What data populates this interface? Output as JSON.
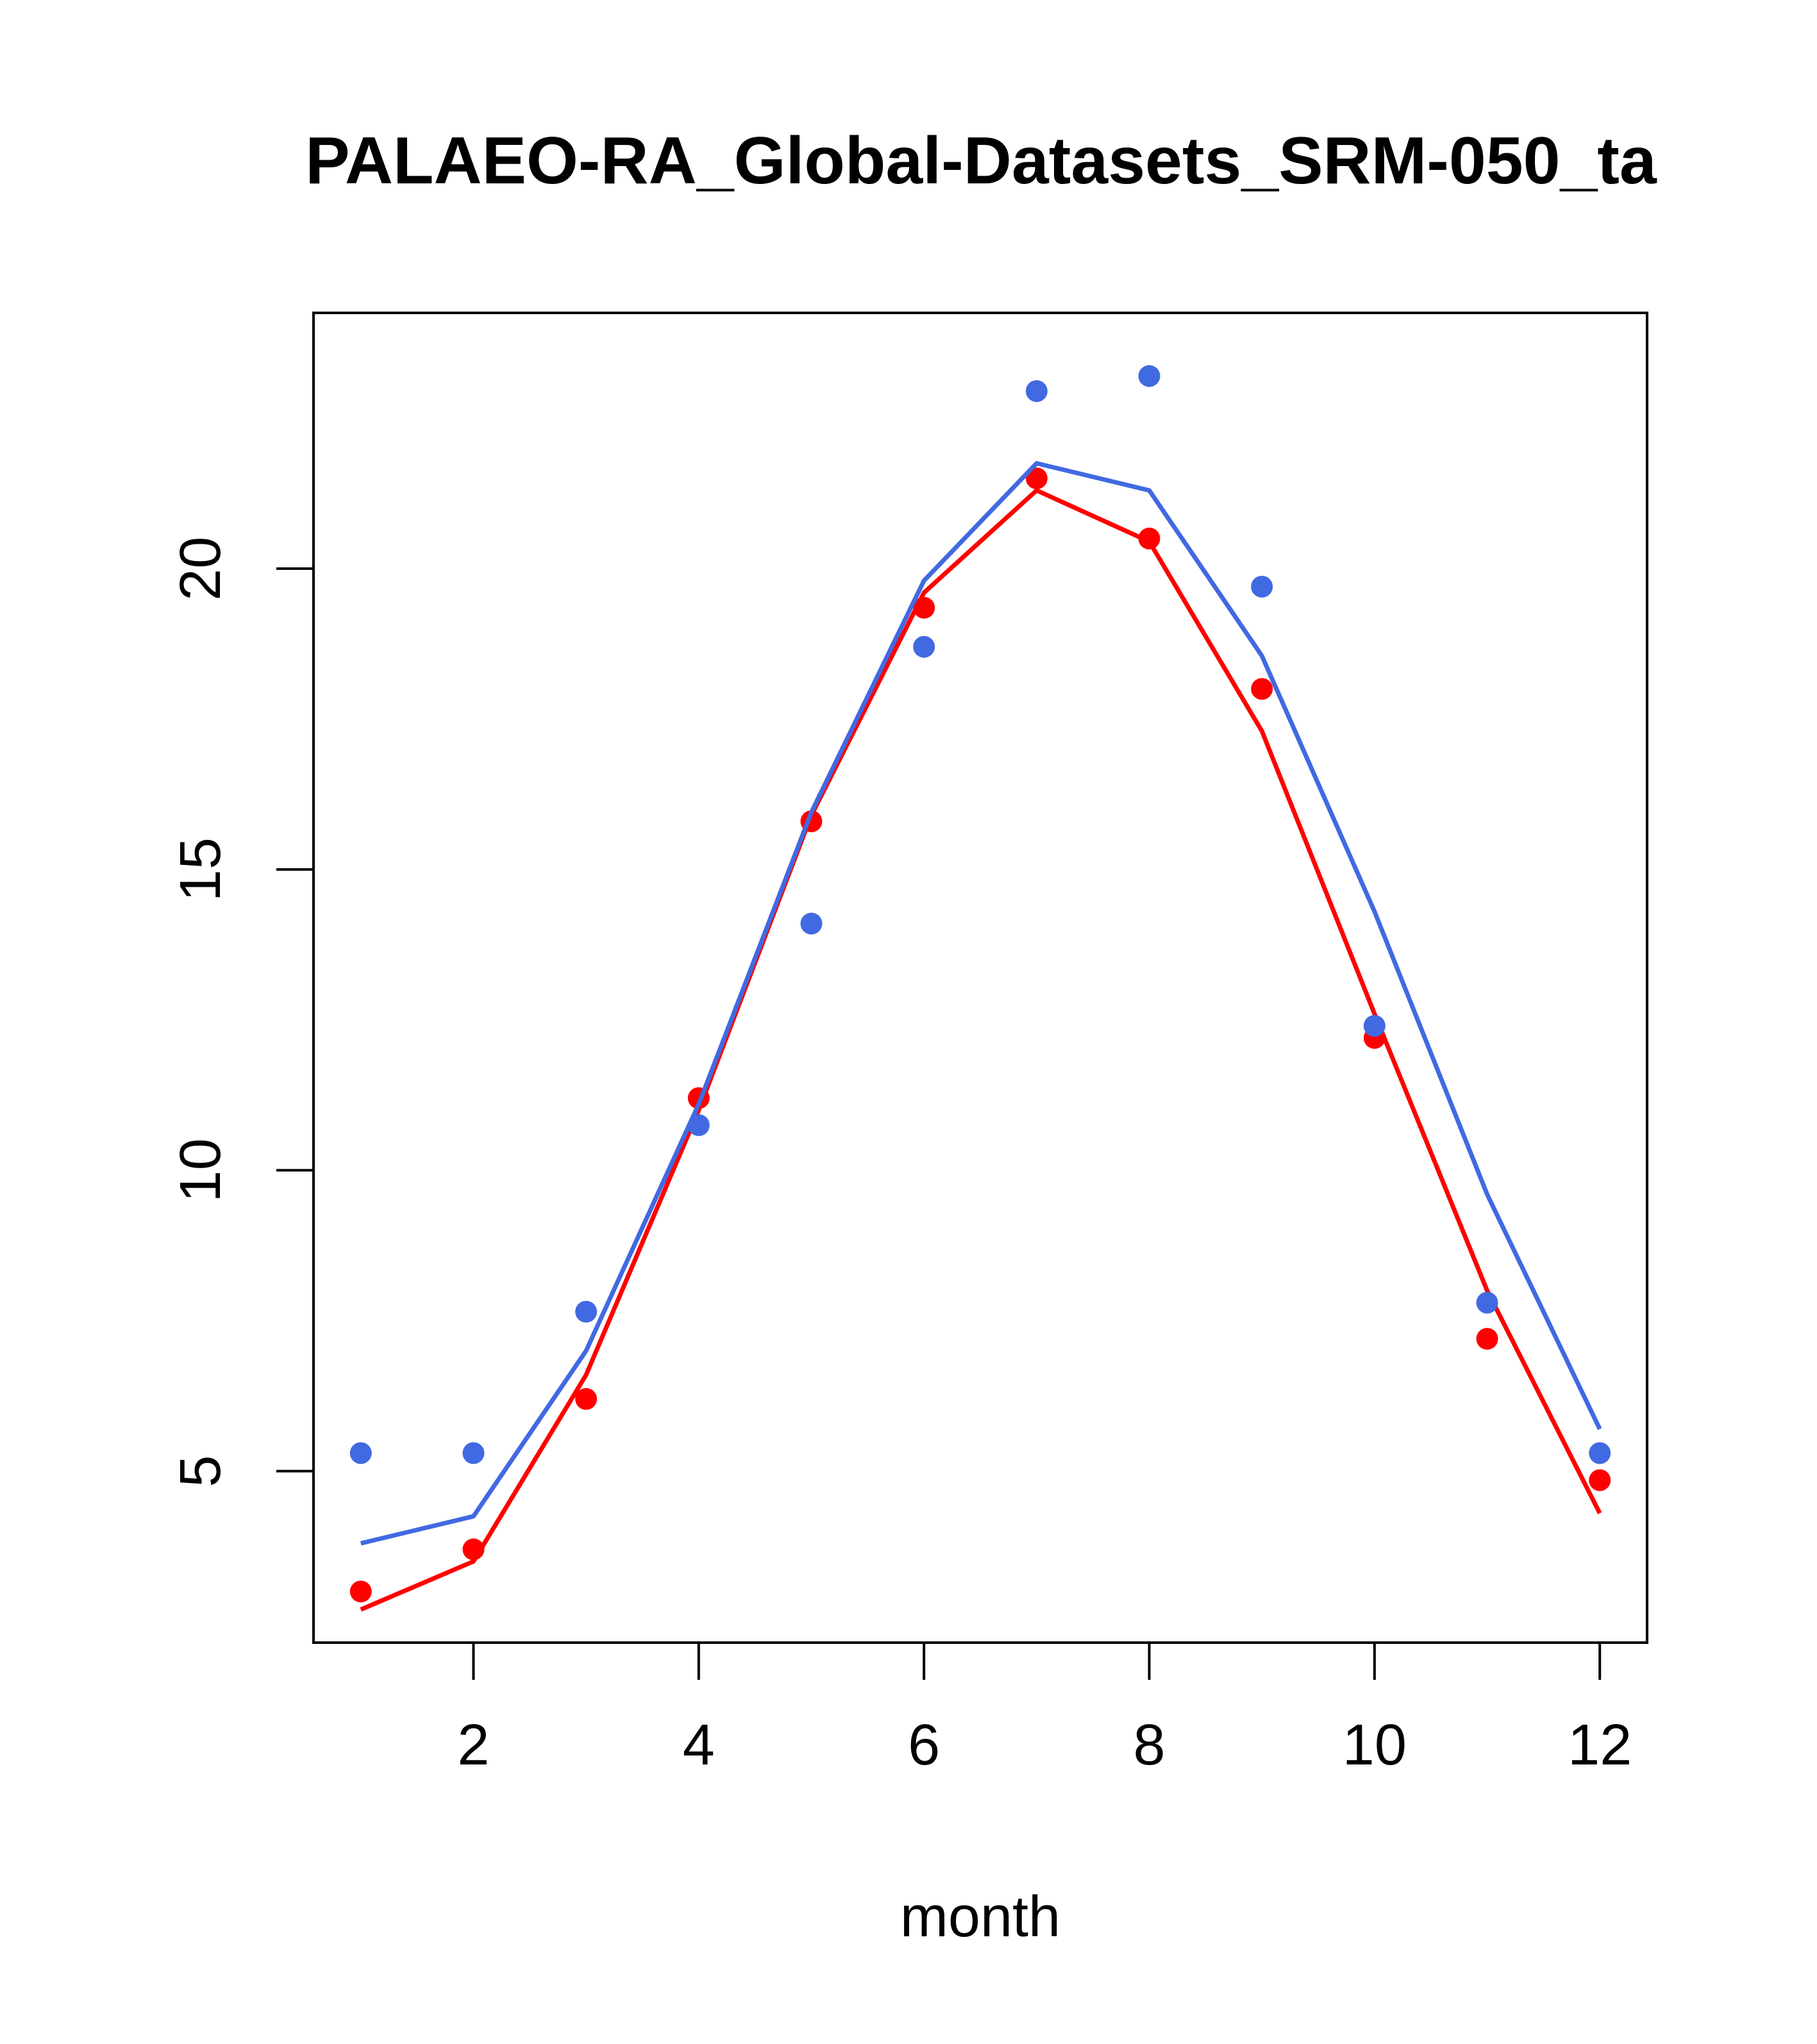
{
  "chart_data": {
    "type": "line",
    "title": "PALAEO-RA_Global-Datasets_SRM-050_ta",
    "xlabel": "month",
    "ylabel": "",
    "xlim": [
      0.58,
      12.42
    ],
    "ylim": [
      2.15,
      24.25
    ],
    "x_ticks": [
      2,
      4,
      6,
      8,
      10,
      12
    ],
    "y_ticks": [
      5,
      10,
      15,
      20
    ],
    "grid": false,
    "legend": "none",
    "x": [
      1,
      2,
      3,
      4,
      5,
      6,
      7,
      8,
      9,
      10,
      11,
      12
    ],
    "series": [
      {
        "name": "red",
        "color": "#ff0000",
        "points": [
          3.0,
          3.7,
          6.2,
          11.2,
          15.8,
          19.35,
          21.5,
          20.5,
          18.0,
          12.2,
          7.2,
          4.85
        ],
        "line": [
          2.7,
          3.5,
          6.6,
          11.0,
          15.9,
          19.6,
          21.3,
          20.45,
          17.3,
          12.6,
          8.0,
          4.3
        ]
      },
      {
        "name": "blue",
        "color": "#4169e1",
        "points": [
          5.3,
          5.3,
          7.65,
          10.75,
          14.1,
          18.7,
          22.95,
          23.2,
          19.7,
          12.4,
          7.8,
          5.3
        ],
        "line": [
          3.8,
          4.25,
          7.0,
          11.1,
          15.95,
          19.8,
          21.75,
          21.3,
          18.55,
          14.3,
          9.6,
          5.7
        ]
      }
    ]
  }
}
